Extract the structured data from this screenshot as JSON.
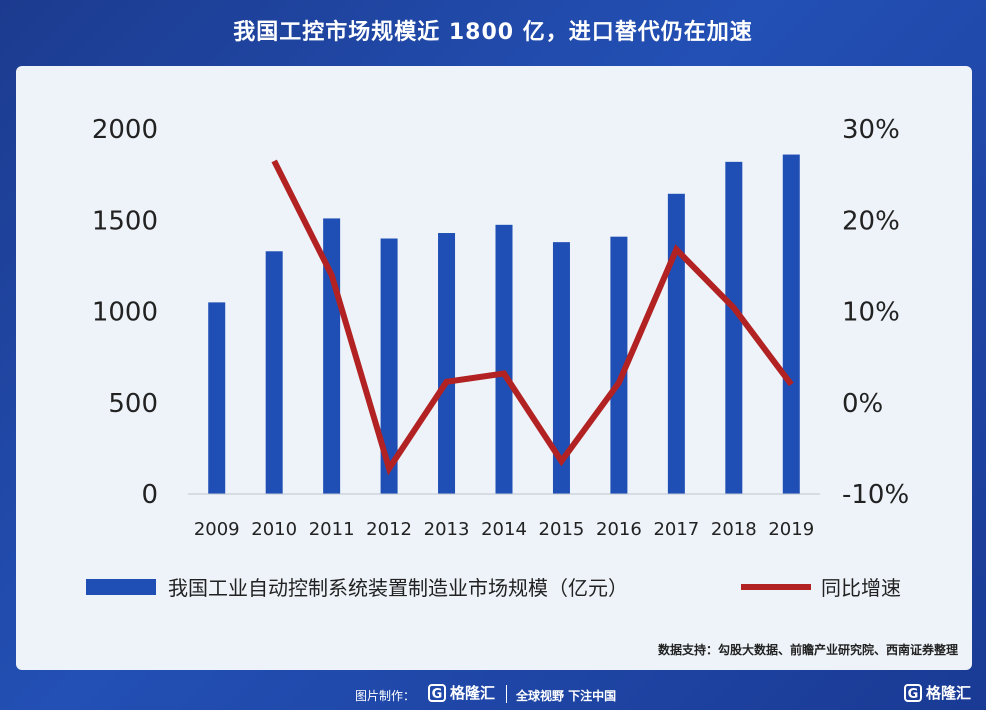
{
  "page": {
    "title": "我国工控市场规模近 1800 亿，进口替代仍在加速",
    "source": "数据支持：勾股大数据、前瞻产业研究院、西南证券整理",
    "footer": {
      "made_by": "图片制作：",
      "brand": "格隆汇",
      "slogan": "全球视野 下注中国"
    }
  },
  "chart_data": {
    "type": "bar",
    "categories": [
      "2009",
      "2010",
      "2011",
      "2012",
      "2013",
      "2014",
      "2015",
      "2016",
      "2017",
      "2018",
      "2019"
    ],
    "series": [
      {
        "name": "我国工业自动控制系统装置制造业市场规模（亿元）",
        "type": "bar",
        "axis": "left",
        "color": "#1f4fb5",
        "values": [
          1050,
          1330,
          1510,
          1400,
          1430,
          1475,
          1380,
          1410,
          1645,
          1820,
          1860
        ]
      },
      {
        "name": "同比增速",
        "type": "line",
        "axis": "right",
        "color": "#b22222",
        "values": [
          null,
          26.5,
          14.0,
          -7.2,
          2.3,
          3.2,
          -6.4,
          2.2,
          16.8,
          10.4,
          2.0
        ]
      }
    ],
    "left_axis": {
      "ylim": [
        0,
        2000
      ],
      "ticks": [
        "0",
        "500",
        "1000",
        "1500",
        "2000"
      ]
    },
    "right_axis": {
      "ylim": [
        -10,
        30
      ],
      "ticks": [
        "-10%",
        "0%",
        "10%",
        "20%",
        "30%"
      ]
    },
    "legend_position": "bottom",
    "grid": false
  }
}
